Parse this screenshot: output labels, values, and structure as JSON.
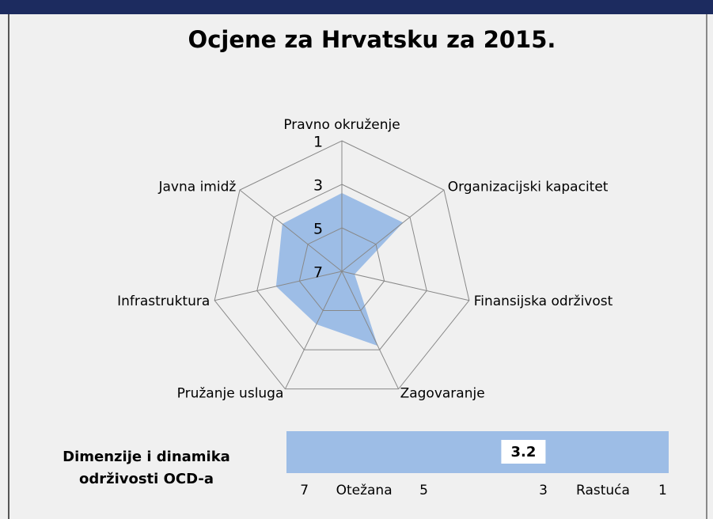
{
  "chart_data": [
    {
      "type": "radar",
      "title": "Ocjene za Hrvatsku za 2015.",
      "categories": [
        "Pravno okruženje",
        "Organizacijski kapacitet",
        "Finansijska održivost",
        "Zagovaranje",
        "Pružanje usluga",
        "Infrastruktura",
        "Javna imidž"
      ],
      "values": [
        3.4,
        3.4,
        6.4,
        3.2,
        4.3,
        3.9,
        3.5
      ],
      "color": "#9dbde6",
      "rlim": [
        7,
        1
      ],
      "rticks": [
        1,
        3,
        5,
        7
      ],
      "grid": true
    },
    {
      "type": "scale",
      "title_lines": [
        "Dimenzije i dinamika",
        "održivosti OCD-a"
      ],
      "value": 3.2,
      "color": "#9dbde6",
      "xlim": [
        7.3,
        0.9
      ],
      "xticks": [
        7,
        5,
        3,
        1
      ],
      "zones": [
        {
          "label": "Otežana",
          "value": 6
        },
        {
          "label": "Rastuća",
          "value": 2
        }
      ]
    }
  ]
}
